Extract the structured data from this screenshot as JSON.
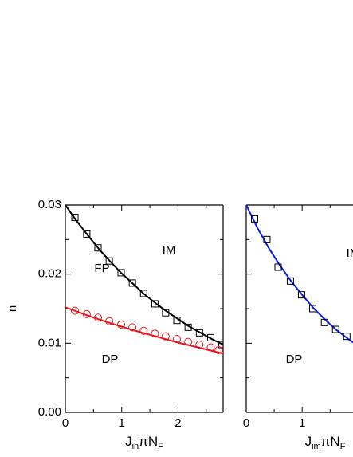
{
  "chart_data": [
    {
      "type": "line",
      "xlabel_parts": [
        "J",
        "in",
        "πN",
        "F"
      ],
      "ylabel": "n",
      "xlim": [
        0,
        2.8
      ],
      "ylim": [
        0,
        0.03
      ],
      "xticks": [
        0,
        1,
        2
      ],
      "yticks": [
        {
          "value": 0,
          "label": "0.00"
        },
        0.01,
        0.02,
        0.03
      ],
      "annotations": [
        "IM",
        "FP",
        "DP"
      ],
      "series": [
        {
          "style": "line",
          "color": "#000000",
          "x": [
            0,
            0.2,
            0.4,
            0.6,
            0.8,
            1.0,
            1.2,
            1.4,
            1.6,
            1.8,
            2.0,
            2.2,
            2.4,
            2.6,
            2.8
          ],
          "values": [
            0.03,
            0.0277,
            0.0256,
            0.0236,
            0.0218,
            0.0201,
            0.0186,
            0.0171,
            0.0158,
            0.0146,
            0.0135,
            0.0124,
            0.0115,
            0.0106,
            0.0098
          ]
        },
        {
          "style": "square",
          "color": "#000000",
          "x": [
            0.17,
            0.38,
            0.58,
            0.78,
            0.99,
            1.19,
            1.39,
            1.59,
            1.78,
            1.98,
            2.18,
            2.38,
            2.58,
            2.78
          ],
          "values": [
            0.0282,
            0.0258,
            0.0238,
            0.0219,
            0.0202,
            0.0187,
            0.0172,
            0.0157,
            0.0144,
            0.0133,
            0.0123,
            0.0115,
            0.0108,
            0.0098
          ]
        },
        {
          "style": "line",
          "color": "#e8141b",
          "x": [
            0,
            0.4,
            0.8,
            1.2,
            1.6,
            2.0,
            2.4,
            2.8
          ],
          "values": [
            0.0152,
            0.014,
            0.0129,
            0.0119,
            0.011,
            0.0101,
            0.0093,
            0.0085
          ]
        },
        {
          "style": "circle",
          "color": "#e8141b",
          "x": [
            0.17,
            0.38,
            0.58,
            0.78,
            0.99,
            1.19,
            1.39,
            1.59,
            1.78,
            1.98,
            2.18,
            2.38,
            2.58,
            2.72
          ],
          "values": [
            0.0147,
            0.0142,
            0.0137,
            0.0132,
            0.0127,
            0.0123,
            0.0118,
            0.0114,
            0.011,
            0.0106,
            0.0102,
            0.0098,
            0.0094,
            0.009
          ]
        }
      ]
    },
    {
      "type": "line",
      "xlabel_parts": [
        "J",
        "im",
        "πN",
        "F"
      ],
      "xlim": [
        0,
        1.91
      ],
      "ylim": [
        0,
        0.03
      ],
      "xticks": [
        0,
        1
      ],
      "annotations": [
        "IM",
        "DP"
      ],
      "series": [
        {
          "style": "line",
          "color": "#0a1ee0",
          "x": [
            -0.03,
            0.2,
            0.4,
            0.6,
            0.8,
            1.0,
            1.2,
            1.4,
            1.6,
            1.91
          ],
          "values": [
            0.0305,
            0.0267,
            0.0238,
            0.0213,
            0.019,
            0.017,
            0.0151,
            0.0135,
            0.012,
            0.0101
          ]
        },
        {
          "style": "square",
          "color": "#000000",
          "x": [
            0.15,
            0.37,
            0.57,
            0.79,
            0.99,
            1.19,
            1.4,
            1.6,
            1.8
          ],
          "values": [
            0.028,
            0.025,
            0.021,
            0.019,
            0.017,
            0.015,
            0.013,
            0.012,
            0.011
          ]
        }
      ]
    }
  ]
}
